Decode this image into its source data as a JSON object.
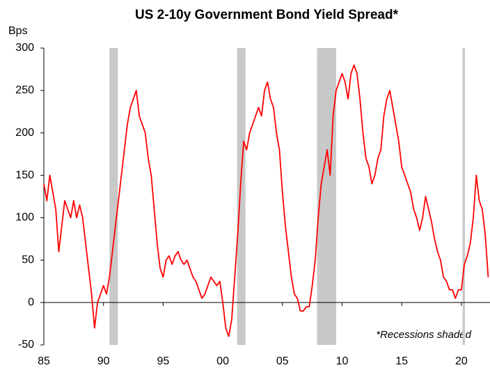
{
  "chart_data": {
    "type": "line",
    "title": "US 2-10y Government Bond Yield Spread*",
    "y_label": "Bps",
    "annotation": "*Recessions shaded",
    "x": [
      1985.0,
      1985.25,
      1985.5,
      1985.75,
      1986.0,
      1986.25,
      1986.5,
      1986.75,
      1987.0,
      1987.25,
      1987.5,
      1987.75,
      1988.0,
      1988.25,
      1988.5,
      1988.75,
      1989.0,
      1989.25,
      1989.5,
      1989.75,
      1990.0,
      1990.25,
      1990.5,
      1990.75,
      1991.0,
      1991.25,
      1991.5,
      1991.75,
      1992.0,
      1992.25,
      1992.5,
      1992.75,
      1993.0,
      1993.25,
      1993.5,
      1993.75,
      1994.0,
      1994.25,
      1994.5,
      1994.75,
      1995.0,
      1995.25,
      1995.5,
      1995.75,
      1996.0,
      1996.25,
      1996.5,
      1996.75,
      1997.0,
      1997.25,
      1997.5,
      1997.75,
      1998.0,
      1998.25,
      1998.5,
      1998.75,
      1999.0,
      1999.25,
      1999.5,
      1999.75,
      2000.0,
      2000.25,
      2000.5,
      2000.75,
      2001.0,
      2001.25,
      2001.5,
      2001.75,
      2002.0,
      2002.25,
      2002.5,
      2002.75,
      2003.0,
      2003.25,
      2003.5,
      2003.75,
      2004.0,
      2004.25,
      2004.5,
      2004.75,
      2005.0,
      2005.25,
      2005.5,
      2005.75,
      2006.0,
      2006.25,
      2006.5,
      2006.75,
      2007.0,
      2007.25,
      2007.5,
      2007.75,
      2008.0,
      2008.25,
      2008.5,
      2008.75,
      2009.0,
      2009.25,
      2009.5,
      2009.75,
      2010.0,
      2010.25,
      2010.5,
      2010.75,
      2011.0,
      2011.25,
      2011.5,
      2011.75,
      2012.0,
      2012.25,
      2012.5,
      2012.75,
      2013.0,
      2013.25,
      2013.5,
      2013.75,
      2014.0,
      2014.25,
      2014.5,
      2014.75,
      2015.0,
      2015.25,
      2015.5,
      2015.75,
      2016.0,
      2016.25,
      2016.5,
      2016.75,
      2017.0,
      2017.25,
      2017.5,
      2017.75,
      2018.0,
      2018.25,
      2018.5,
      2018.75,
      2019.0,
      2019.25,
      2019.5,
      2019.75,
      2020.0,
      2020.25,
      2020.5,
      2020.75,
      2021.0,
      2021.25,
      2021.5,
      2021.75,
      2022.0,
      2022.25
    ],
    "series": [
      {
        "color": "#ff0000",
        "values": [
          140,
          120,
          150,
          130,
          110,
          60,
          90,
          120,
          110,
          100,
          120,
          100,
          115,
          100,
          70,
          40,
          10,
          -30,
          0,
          10,
          20,
          10,
          30,
          60,
          90,
          120,
          150,
          180,
          210,
          230,
          240,
          250,
          220,
          210,
          200,
          170,
          150,
          110,
          70,
          40,
          30,
          50,
          55,
          45,
          55,
          60,
          50,
          45,
          50,
          40,
          30,
          25,
          15,
          5,
          10,
          20,
          30,
          25,
          20,
          25,
          0,
          -30,
          -40,
          -20,
          30,
          80,
          140,
          190,
          180,
          200,
          210,
          220,
          230,
          220,
          250,
          260,
          240,
          230,
          200,
          180,
          130,
          90,
          60,
          30,
          10,
          5,
          -10,
          -10,
          -5,
          -5,
          20,
          50,
          100,
          140,
          160,
          180,
          150,
          220,
          250,
          260,
          270,
          260,
          240,
          270,
          280,
          270,
          240,
          200,
          170,
          160,
          140,
          150,
          170,
          180,
          220,
          240,
          250,
          230,
          210,
          190,
          160,
          150,
          140,
          130,
          110,
          100,
          85,
          100,
          125,
          110,
          95,
          75,
          60,
          50,
          30,
          25,
          15,
          15,
          5,
          15,
          15,
          45,
          55,
          70,
          100,
          150,
          120,
          110,
          80,
          30
        ]
      }
    ],
    "recessions": [
      [
        1990.5,
        1991.2
      ],
      [
        2001.2,
        2001.9
      ],
      [
        2007.9,
        2009.5
      ],
      [
        2020.1,
        2020.3
      ]
    ],
    "recession_color": "#c8c8c8",
    "xlim": [
      1985,
      2022.4
    ],
    "ylim": [
      -50,
      300
    ],
    "xticks": [
      {
        "value": 1985,
        "label": "85"
      },
      {
        "value": 1990,
        "label": "90"
      },
      {
        "value": 1995,
        "label": "95"
      },
      {
        "value": 2000,
        "label": "00"
      },
      {
        "value": 2005,
        "label": "05"
      },
      {
        "value": 2010,
        "label": "10"
      },
      {
        "value": 2015,
        "label": "15"
      },
      {
        "value": 2020,
        "label": "20"
      }
    ],
    "yticks": [
      -50,
      0,
      50,
      100,
      150,
      200,
      250,
      300
    ]
  }
}
